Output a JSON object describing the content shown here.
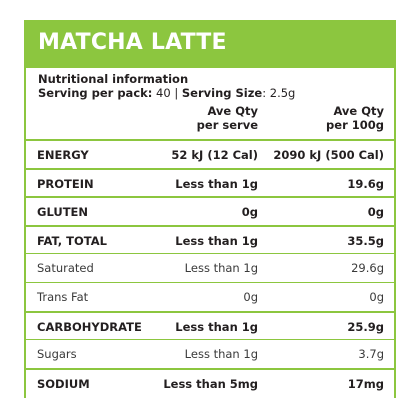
{
  "product": {
    "title": "MATCHA LATTE"
  },
  "colors": {
    "accent": "#8cc63f",
    "line": "#8cc63f"
  },
  "info": {
    "heading": "Nutritional information",
    "serving_per_pack_label": "Serving per pack:",
    "serving_per_pack_value": "40",
    "separator": "|",
    "serving_size_label": "Serving Size",
    "serving_size_value": ": 2.5g"
  },
  "columns": {
    "per_serve_line1": "Ave Qty",
    "per_serve_line2": "per serve",
    "per_100g_line1": "Ave Qty",
    "per_100g_line2": "per 100g"
  },
  "rows": [
    {
      "name": "ENERGY",
      "per_serve": "52 kJ (12 Cal)",
      "per_100g": "2090 kJ (500 Cal)",
      "style": "bold"
    },
    {
      "name": "PROTEIN",
      "per_serve": "Less than 1g",
      "per_100g": "19.6g",
      "style": "bold"
    },
    {
      "name": "GLUTEN",
      "per_serve": "0g",
      "per_100g": "0g",
      "style": "bold"
    },
    {
      "name": "FAT, TOTAL",
      "per_serve": "Less than 1g",
      "per_100g": "35.5g",
      "style": "bold"
    },
    {
      "name": "Saturated",
      "per_serve": "Less than 1g",
      "per_100g": "29.6g",
      "style": "sub"
    },
    {
      "name": "Trans Fat",
      "per_serve": "0g",
      "per_100g": "0g",
      "style": "sub"
    },
    {
      "name": "CARBOHYDRATE",
      "per_serve": "Less than 1g",
      "per_100g": "25.9g",
      "style": "bold"
    },
    {
      "name": "Sugars",
      "per_serve": "Less than 1g",
      "per_100g": "3.7g",
      "style": "sub"
    },
    {
      "name": "SODIUM",
      "per_serve": "Less than 5mg",
      "per_100g": "17mg",
      "style": "bold"
    }
  ]
}
